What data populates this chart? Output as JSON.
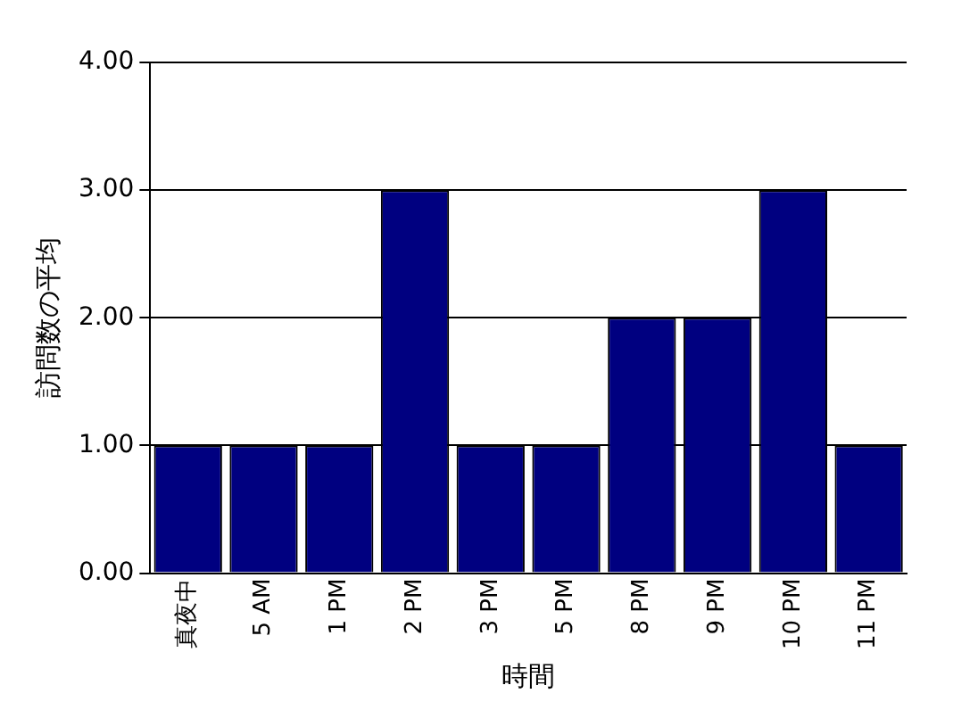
{
  "chart_data": {
    "type": "bar",
    "xlabel": "時間",
    "ylabel": "訪問数の平均",
    "categories": [
      "真夜中",
      "5 AM",
      "1 PM",
      "2 PM",
      "3 PM",
      "5 PM",
      "8 PM",
      "9 PM",
      "10 PM",
      "11 PM"
    ],
    "values": [
      1,
      1,
      1,
      3,
      1,
      1,
      2,
      2,
      3,
      1
    ],
    "color": "#000080",
    "ylim": [
      0,
      4
    ],
    "yticks": [
      {
        "value": 0,
        "label": "0.00"
      },
      {
        "value": 1,
        "label": "1.00"
      },
      {
        "value": 2,
        "label": "2.00"
      },
      {
        "value": 3,
        "label": "3.00"
      },
      {
        "value": 4,
        "label": "4.00"
      }
    ],
    "grid": "y",
    "legend": false
  }
}
